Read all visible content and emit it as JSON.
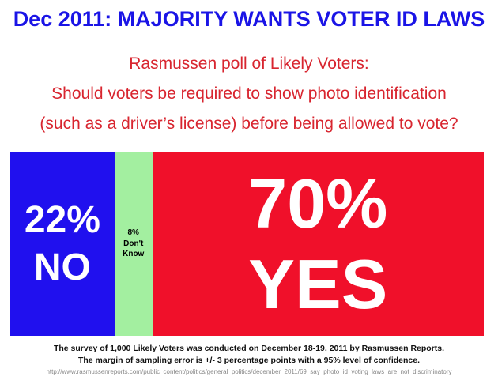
{
  "colors": {
    "no": "#2010ee",
    "dont_know": "#a3efa0",
    "yes": "#f0102a"
  },
  "chart_data": {
    "type": "bar",
    "orientation": "stacked-horizontal",
    "title": "Dec 2011: MAJORITY WANTS VOTER ID LAWS",
    "subtitle": [
      "Rasmussen poll of Likely Voters:",
      "Should voters be required to show photo identification",
      "(such as a driver’s license) before being allowed to vote?"
    ],
    "categories": [
      "NO",
      "Don't Know",
      "YES"
    ],
    "values": [
      22,
      8,
      70
    ],
    "labels": [
      {
        "pct": "22%",
        "text": "NO"
      },
      {
        "pct": "8%",
        "text": "Don't Know"
      },
      {
        "pct": "70%",
        "text": "YES"
      }
    ],
    "footnote": [
      "The survey of 1,000 Likely Voters was conducted on December 18-19, 2011 by Rasmussen Reports.",
      "The margin of sampling error is +/- 3 percentage points with a 95% level of confidence."
    ],
    "source_url": "http://www.rasmussenreports.com/public_content/politics/general_politics/december_2011/69_say_photo_id_voting_laws_are_not_discriminatory"
  }
}
